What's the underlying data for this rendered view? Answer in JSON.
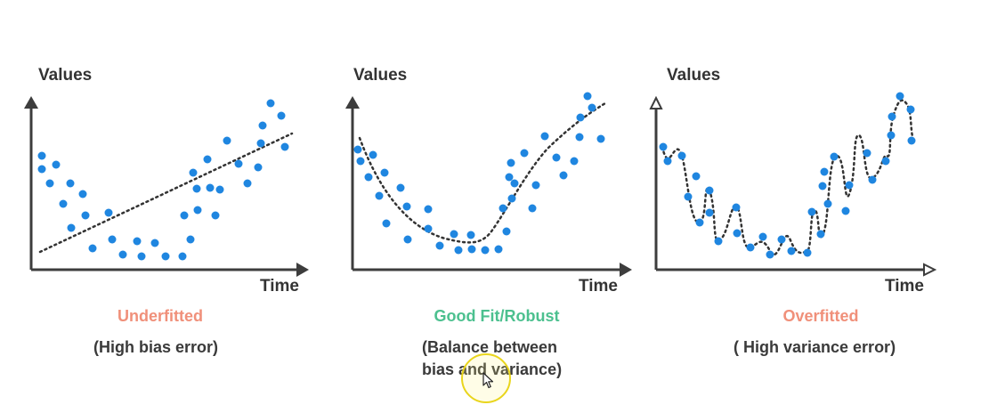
{
  "colors": {
    "axis": "#3d3d3d",
    "point": "#1f86e0",
    "curve": "#333333",
    "underfitted": "#f0907a",
    "good_fit": "#4cc08f",
    "overfitted": "#f0907a"
  },
  "panels": [
    {
      "ylabel": "Values",
      "xlabel": "Time",
      "title": "Underfitted",
      "subtitle": [
        "(High bias error)"
      ]
    },
    {
      "ylabel": "Values",
      "xlabel": "Time",
      "title": "Good Fit/Robust",
      "subtitle": [
        "(Balance between",
        "bias and variance)"
      ]
    },
    {
      "ylabel": "Values",
      "xlabel": "Time",
      "title": "Overfitted",
      "subtitle": [
        "( High variance error)"
      ]
    }
  ]
}
